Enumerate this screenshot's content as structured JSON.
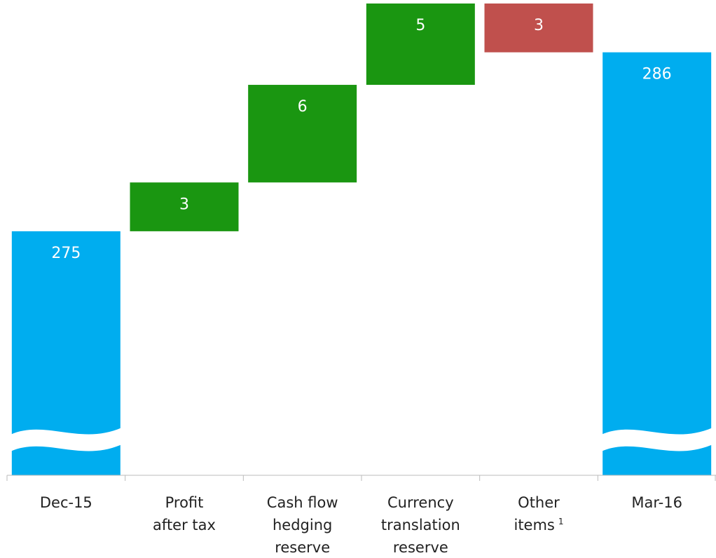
{
  "chart_data": {
    "type": "waterfall",
    "categories": [
      {
        "lines": [
          "Dec-15"
        ]
      },
      {
        "lines": [
          "Profit",
          "after tax"
        ]
      },
      {
        "lines": [
          "Cash flow",
          "hedging",
          "reserve"
        ]
      },
      {
        "lines": [
          "Currency",
          "translation",
          "reserve"
        ]
      },
      {
        "lines": [
          "Other",
          "items"
        ],
        "note": "1"
      },
      {
        "lines": [
          "Mar-16"
        ]
      }
    ],
    "values": [
      275,
      3,
      6,
      5,
      -3,
      286
    ],
    "value_labels": [
      "275",
      "3",
      "6",
      "5",
      "3",
      "286"
    ],
    "is_total": [
      true,
      false,
      false,
      false,
      false,
      true
    ],
    "colors": [
      "#00adef",
      "#1a9611",
      "#1a9611",
      "#1a9611",
      "#c0504d",
      "#00adef"
    ],
    "ylim": [
      260,
      289
    ],
    "axis_break": true
  }
}
